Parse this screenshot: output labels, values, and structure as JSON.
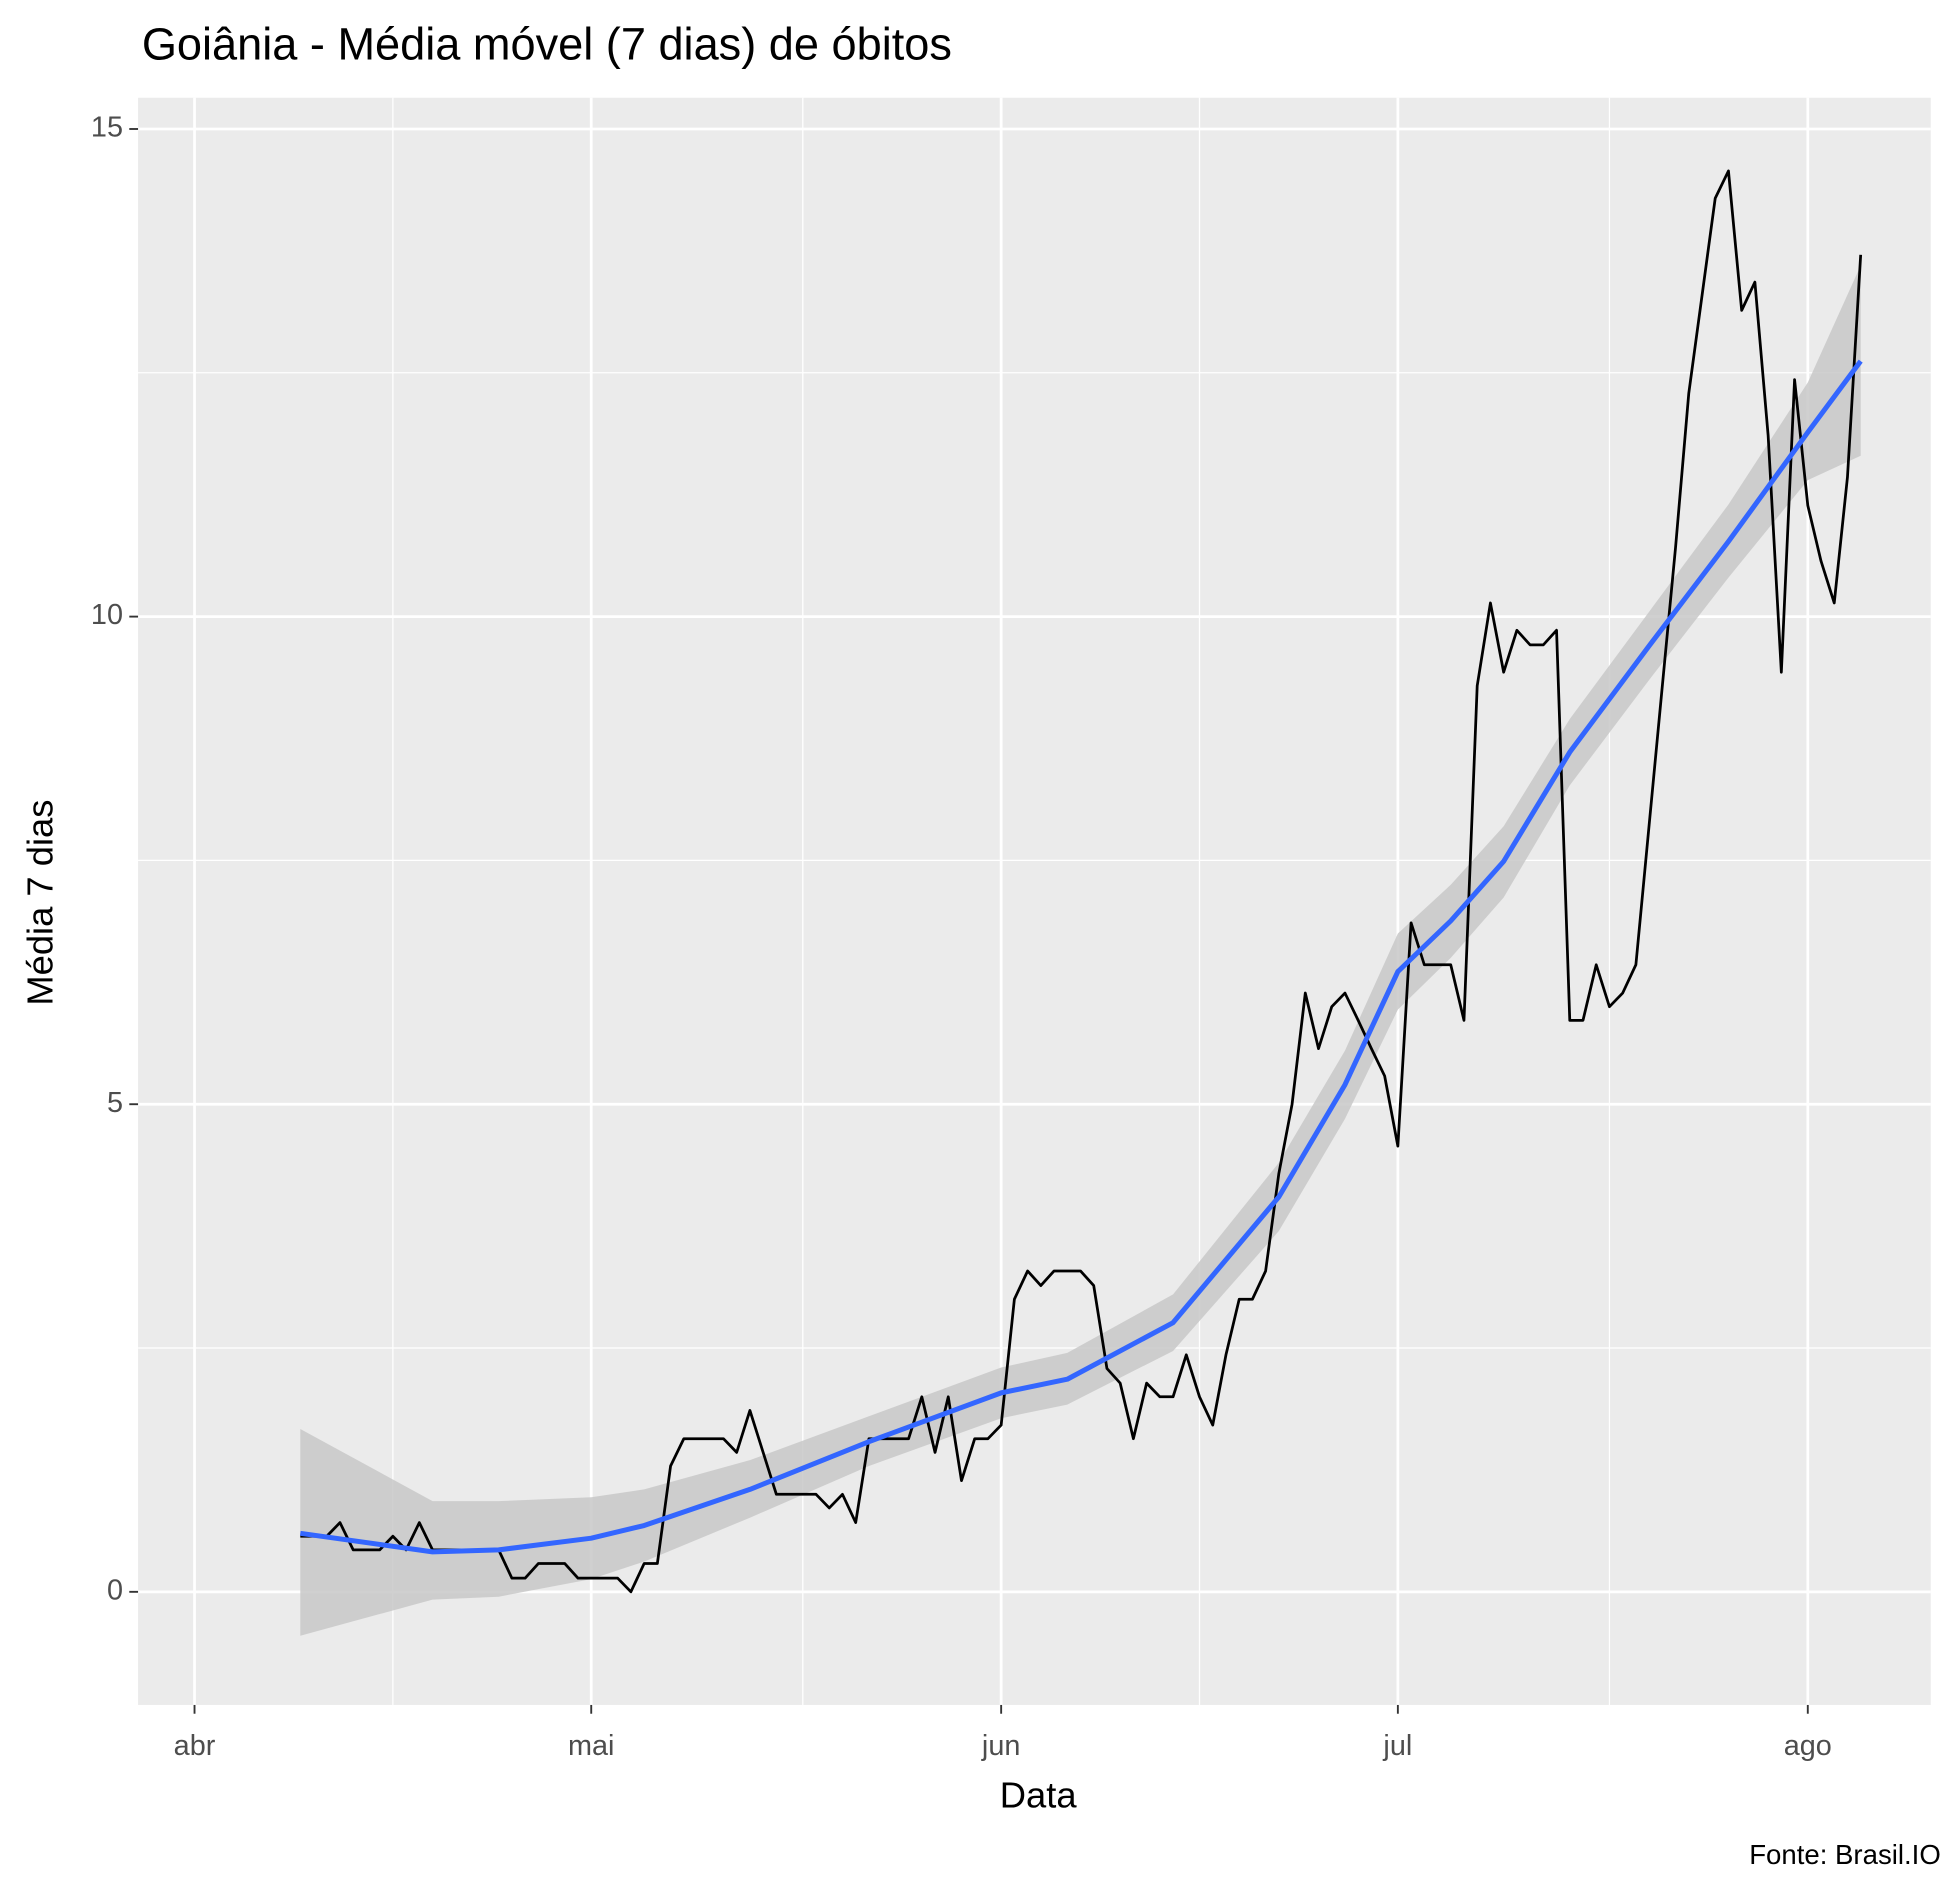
{
  "chart_data": {
    "type": "line",
    "title": "Goiânia - Média móvel (7 dias) de óbitos",
    "x_label": "Data",
    "y_label": "Média 7 dias",
    "caption": "Fonte: Brasil.IO",
    "x": [
      8,
      9,
      10,
      11,
      12,
      13,
      14,
      15,
      16,
      17,
      18,
      19,
      20,
      21,
      22,
      23,
      24,
      25,
      26,
      27,
      28,
      29,
      30,
      31,
      32,
      33,
      34,
      35,
      36,
      37,
      38,
      39,
      40,
      41,
      42,
      43,
      44,
      45,
      46,
      47,
      48,
      49,
      50,
      51,
      52,
      53,
      54,
      55,
      56,
      57,
      58,
      59,
      60,
      61,
      62,
      63,
      64,
      65,
      66,
      67,
      68,
      69,
      70,
      71,
      72,
      73,
      74,
      75,
      76,
      77,
      78,
      79,
      80,
      81,
      82,
      83,
      84,
      85,
      86,
      87,
      88,
      89,
      90,
      91,
      92,
      93,
      94,
      95,
      96,
      97,
      98,
      99,
      100,
      101,
      102,
      103,
      104,
      105,
      106,
      107,
      108,
      109,
      110,
      111,
      112,
      113,
      114,
      115,
      116,
      117,
      118,
      119,
      120,
      121,
      122,
      123,
      124,
      125,
      126
    ],
    "series": [
      {
        "color": "#000000",
        "values": [
          0.57,
          0.57,
          0.57,
          0.71,
          0.43,
          0.43,
          0.43,
          0.57,
          0.43,
          0.71,
          0.43,
          0.43,
          0.43,
          0.43,
          0.43,
          0.43,
          0.14,
          0.14,
          0.29,
          0.29,
          0.29,
          0.14,
          0.14,
          0.14,
          0.14,
          0,
          0.29,
          0.29,
          1.29,
          1.57,
          1.57,
          1.57,
          1.57,
          1.43,
          1.86,
          1.43,
          1.0,
          1.0,
          1.0,
          1.0,
          0.86,
          1.0,
          0.71,
          1.57,
          1.57,
          1.57,
          1.57,
          2.0,
          1.43,
          2.0,
          1.14,
          1.57,
          1.57,
          1.71,
          3.0,
          3.29,
          3.14,
          3.29,
          3.29,
          3.29,
          3.14,
          2.29,
          2.14,
          1.57,
          2.14,
          2.0,
          2.0,
          2.43,
          2.0,
          1.71,
          2.43,
          3.0,
          3.0,
          3.29,
          4.29,
          5.0,
          6.14,
          5.57,
          6.0,
          6.14,
          5.86,
          5.57,
          5.29,
          4.57,
          6.86,
          6.43,
          6.43,
          6.43,
          5.86,
          9.29,
          10.14,
          9.43,
          9.86,
          9.71,
          9.71,
          9.86,
          5.86,
          5.86,
          6.43,
          6.0,
          6.14,
          6.43,
          7.86,
          9.29,
          10.71,
          12.29,
          13.29,
          14.29,
          14.57,
          13.14,
          13.43,
          11.86,
          9.43,
          12.43,
          11.14,
          10.57,
          10.14,
          11.43,
          13.71
        ]
      }
    ],
    "smooth": {
      "color": "#3366ff",
      "band_color": "#c8c8c8",
      "x": [
        8,
        18,
        23,
        30,
        34,
        42,
        51,
        61,
        66,
        74,
        82,
        87,
        91,
        95,
        99,
        104,
        110,
        116,
        122,
        126
      ],
      "values": [
        0.6,
        0.41,
        0.43,
        0.55,
        0.68,
        1.05,
        1.54,
        2.04,
        2.18,
        2.76,
        4.05,
        5.2,
        6.36,
        6.88,
        7.49,
        8.61,
        9.7,
        10.77,
        11.89,
        12.62
      ],
      "lower": [
        -0.45,
        -0.08,
        -0.05,
        0.13,
        0.31,
        0.76,
        1.29,
        1.78,
        1.92,
        2.47,
        3.7,
        4.85,
        5.97,
        6.5,
        7.12,
        8.27,
        9.35,
        10.4,
        11.4,
        11.65
      ],
      "upper": [
        1.67,
        0.93,
        0.93,
        0.97,
        1.05,
        1.35,
        1.8,
        2.3,
        2.45,
        3.05,
        4.4,
        5.55,
        6.75,
        7.25,
        7.85,
        8.95,
        10.05,
        11.15,
        12.4,
        13.6
      ]
    },
    "xlim": [
      -4.27,
      131.3
    ],
    "ylim": [
      -1.16,
      15.32
    ],
    "xticks": [
      {
        "value": 0,
        "label": "abr"
      },
      {
        "value": 30,
        "label": "mai"
      },
      {
        "value": 61,
        "label": "jun"
      },
      {
        "value": 91,
        "label": "jul"
      },
      {
        "value": 122,
        "label": "ago"
      }
    ],
    "yticks": [
      0,
      5,
      10,
      15
    ],
    "x_minor_ticks": [
      15,
      46,
      76,
      107
    ],
    "y_minor_ticks": [
      2.5,
      7.5,
      12.5
    ],
    "grid": true
  }
}
